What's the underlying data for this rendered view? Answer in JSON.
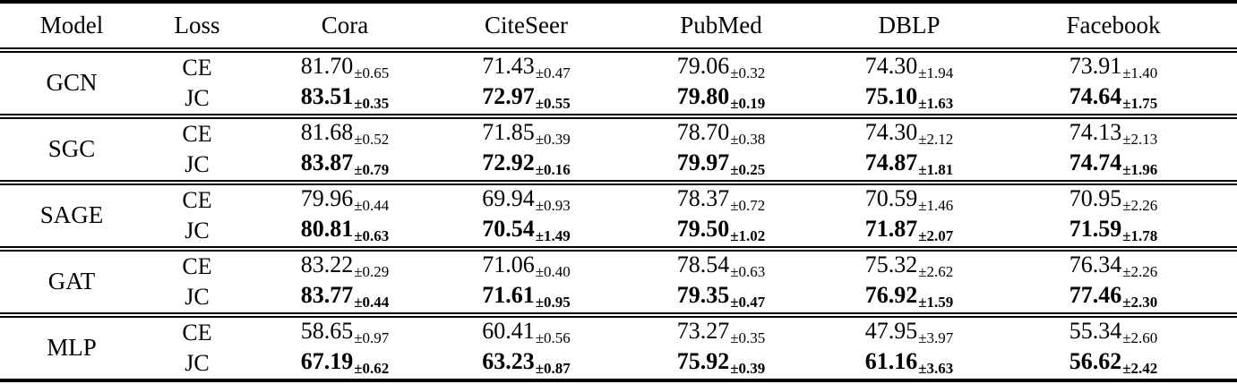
{
  "table": {
    "pm_sign": "±",
    "headers": [
      "Model",
      "Loss",
      "Cora",
      "CiteSeer",
      "PubMed",
      "DBLP",
      "Facebook"
    ],
    "groups": [
      {
        "model": "GCN",
        "rows": [
          {
            "loss": "CE",
            "bold": false,
            "values": [
              {
                "mean": "81.70",
                "std": "0.65"
              },
              {
                "mean": "71.43",
                "std": "0.47"
              },
              {
                "mean": "79.06",
                "std": "0.32"
              },
              {
                "mean": "74.30",
                "std": "1.94"
              },
              {
                "mean": "73.91",
                "std": "1.40"
              }
            ]
          },
          {
            "loss": "JC",
            "bold": true,
            "values": [
              {
                "mean": "83.51",
                "std": "0.35"
              },
              {
                "mean": "72.97",
                "std": "0.55"
              },
              {
                "mean": "79.80",
                "std": "0.19"
              },
              {
                "mean": "75.10",
                "std": "1.63"
              },
              {
                "mean": "74.64",
                "std": "1.75"
              }
            ]
          }
        ]
      },
      {
        "model": "SGC",
        "rows": [
          {
            "loss": "CE",
            "bold": false,
            "values": [
              {
                "mean": "81.68",
                "std": "0.52"
              },
              {
                "mean": "71.85",
                "std": "0.39"
              },
              {
                "mean": "78.70",
                "std": "0.38"
              },
              {
                "mean": "74.30",
                "std": "2.12"
              },
              {
                "mean": "74.13",
                "std": "2.13"
              }
            ]
          },
          {
            "loss": "JC",
            "bold": true,
            "values": [
              {
                "mean": "83.87",
                "std": "0.79"
              },
              {
                "mean": "72.92",
                "std": "0.16"
              },
              {
                "mean": "79.97",
                "std": "0.25"
              },
              {
                "mean": "74.87",
                "std": "1.81"
              },
              {
                "mean": "74.74",
                "std": "1.96"
              }
            ]
          }
        ]
      },
      {
        "model": "SAGE",
        "rows": [
          {
            "loss": "CE",
            "bold": false,
            "values": [
              {
                "mean": "79.96",
                "std": "0.44"
              },
              {
                "mean": "69.94",
                "std": "0.93"
              },
              {
                "mean": "78.37",
                "std": "0.72"
              },
              {
                "mean": "70.59",
                "std": "1.46"
              },
              {
                "mean": "70.95",
                "std": "2.26"
              }
            ]
          },
          {
            "loss": "JC",
            "bold": true,
            "values": [
              {
                "mean": "80.81",
                "std": "0.63"
              },
              {
                "mean": "70.54",
                "std": "1.49"
              },
              {
                "mean": "79.50",
                "std": "1.02"
              },
              {
                "mean": "71.87",
                "std": "2.07"
              },
              {
                "mean": "71.59",
                "std": "1.78"
              }
            ]
          }
        ]
      },
      {
        "model": "GAT",
        "rows": [
          {
            "loss": "CE",
            "bold": false,
            "values": [
              {
                "mean": "83.22",
                "std": "0.29"
              },
              {
                "mean": "71.06",
                "std": "0.40"
              },
              {
                "mean": "78.54",
                "std": "0.63"
              },
              {
                "mean": "75.32",
                "std": "2.62"
              },
              {
                "mean": "76.34",
                "std": "2.26"
              }
            ]
          },
          {
            "loss": "JC",
            "bold": true,
            "values": [
              {
                "mean": "83.77",
                "std": "0.44"
              },
              {
                "mean": "71.61",
                "std": "0.95"
              },
              {
                "mean": "79.35",
                "std": "0.47"
              },
              {
                "mean": "76.92",
                "std": "1.59"
              },
              {
                "mean": "77.46",
                "std": "2.30"
              }
            ]
          }
        ]
      },
      {
        "model": "MLP",
        "rows": [
          {
            "loss": "CE",
            "bold": false,
            "values": [
              {
                "mean": "58.65",
                "std": "0.97"
              },
              {
                "mean": "60.41",
                "std": "0.56"
              },
              {
                "mean": "73.27",
                "std": "0.35"
              },
              {
                "mean": "47.95",
                "std": "3.97"
              },
              {
                "mean": "55.34",
                "std": "2.60"
              }
            ]
          },
          {
            "loss": "JC",
            "bold": true,
            "values": [
              {
                "mean": "67.19",
                "std": "0.62"
              },
              {
                "mean": "63.23",
                "std": "0.87"
              },
              {
                "mean": "75.92",
                "std": "0.39"
              },
              {
                "mean": "61.16",
                "std": "3.63"
              },
              {
                "mean": "56.62",
                "std": "2.42"
              }
            ]
          }
        ]
      }
    ]
  }
}
